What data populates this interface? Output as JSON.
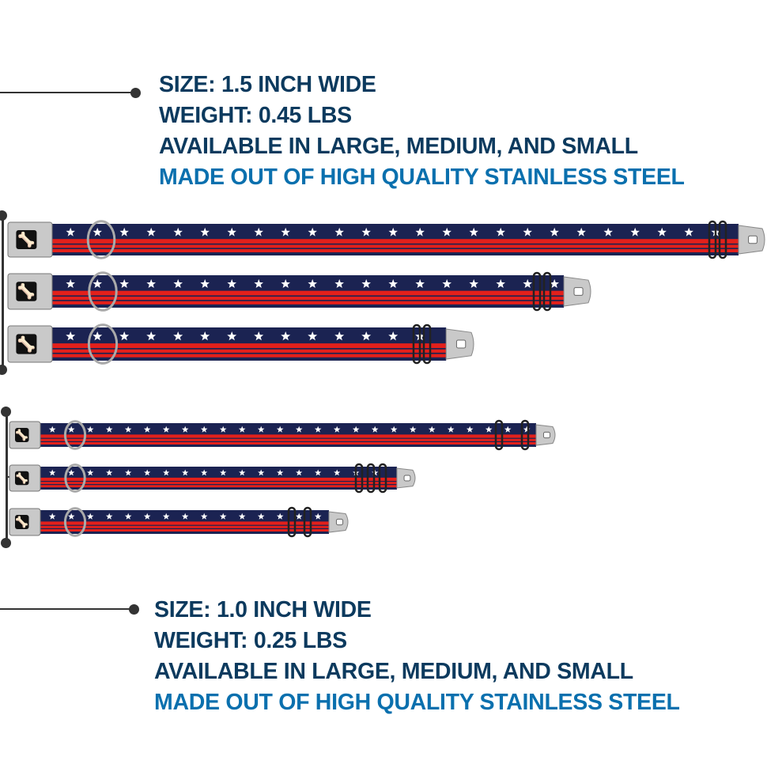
{
  "colors": {
    "dark": "#0c3a5e",
    "blue": "#0a70ae",
    "strap_navy": "#1b2352",
    "strap_red": "#e3201b",
    "metal": "#c9c9c9"
  },
  "large_spec": {
    "size": "SIZE: 1.5 INCH WIDE",
    "weight": "WEIGHT: 0.45 LBS",
    "available": "AVAILABLE IN LARGE, MEDIUM, AND SMALL",
    "material": "MADE OUT OF HIGH QUALITY STAINLESS STEEL"
  },
  "small_spec": {
    "size": "SIZE: 1.0 INCH WIDE",
    "weight": "WEIGHT: 0.25 LBS",
    "available": "AVAILABLE IN LARGE, MEDIUM, AND SMALL",
    "material": "MADE OUT OF HIGH QUALITY STAINLESS STEEL"
  },
  "collars": [
    {
      "group": "1.5 inch",
      "size": "large",
      "pattern": "stars-and-stripes",
      "icon": "bone-icon"
    },
    {
      "group": "1.5 inch",
      "size": "medium",
      "pattern": "stars-and-stripes",
      "icon": "bone-icon"
    },
    {
      "group": "1.5 inch",
      "size": "small",
      "pattern": "stars-and-stripes",
      "icon": "bone-icon"
    },
    {
      "group": "1.0 inch",
      "size": "large",
      "pattern": "stars-and-stripes",
      "icon": "bone-icon"
    },
    {
      "group": "1.0 inch",
      "size": "medium",
      "pattern": "stars-and-stripes",
      "icon": "bone-icon"
    },
    {
      "group": "1.0 inch",
      "size": "small",
      "pattern": "stars-and-stripes",
      "icon": "bone-icon"
    }
  ]
}
